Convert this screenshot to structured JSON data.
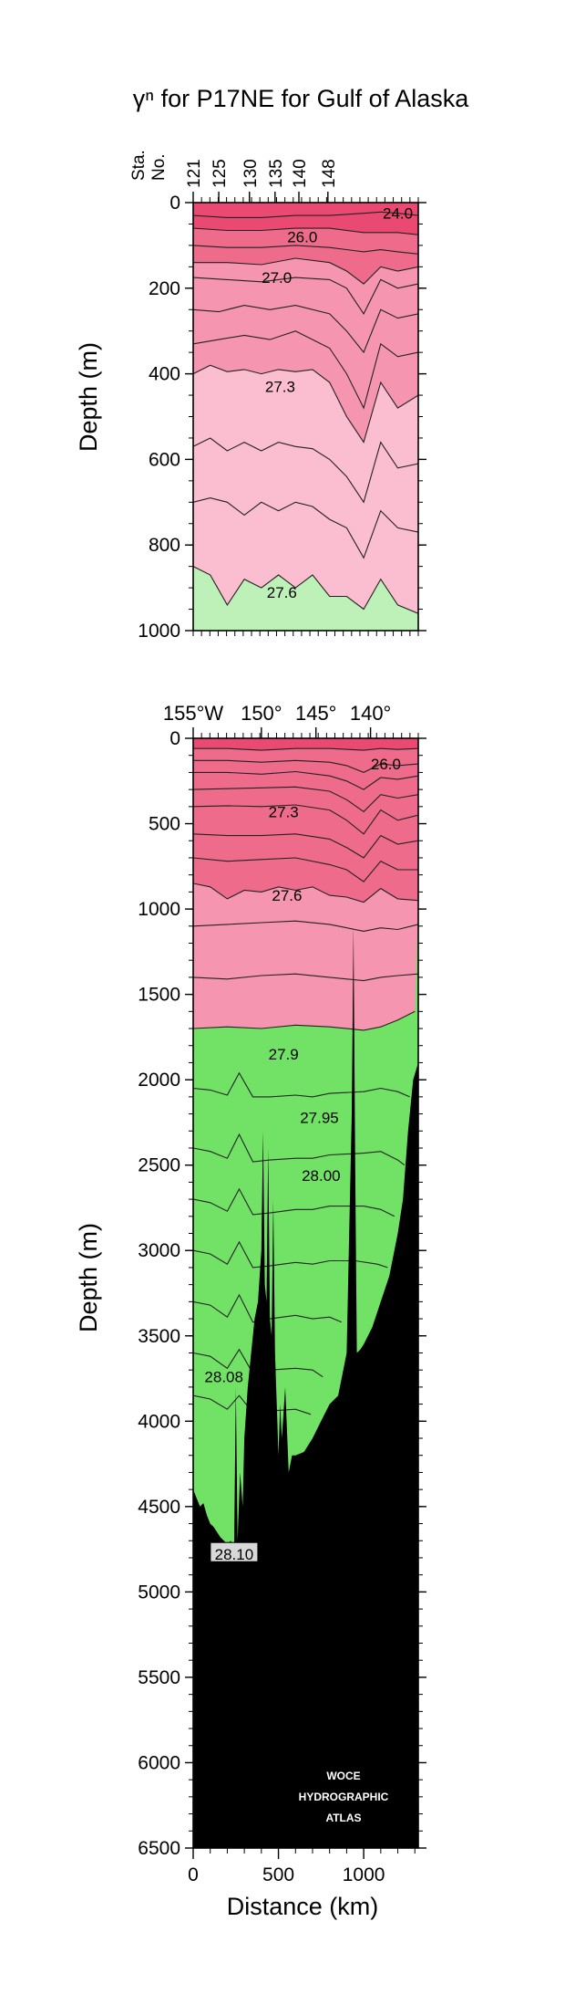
{
  "title": "γⁿ for P17NE for Gulf of Alaska",
  "chart_data": [
    {
      "type": "area",
      "panel": "upper",
      "title": "γⁿ for P17NE for Gulf of Alaska",
      "xlabel": "",
      "ylabel": "Depth (m)",
      "station_axis_label_1": "Sta.",
      "station_axis_label_2": "No.",
      "station_ticks": [
        "121",
        "125",
        "130",
        "135",
        "140",
        "148"
      ],
      "station_tick_positions_km": [
        0,
        150,
        330,
        480,
        620,
        790
      ],
      "xlim": [
        0,
        1320
      ],
      "ylim": [
        0,
        1000
      ],
      "yticks": [
        "0",
        "200",
        "400",
        "600",
        "800",
        "1000"
      ],
      "ytick_values": [
        0,
        200,
        400,
        600,
        800,
        1000
      ],
      "annotations": [
        {
          "text": "24.0",
          "x_km": 1200,
          "depth": 25
        },
        {
          "text": "26.0",
          "x_km": 640,
          "depth": 80
        },
        {
          "text": "27.0",
          "x_km": 490,
          "depth": 175
        },
        {
          "text": "27.3",
          "x_km": 510,
          "depth": 430
        },
        {
          "text": "27.6",
          "x_km": 520,
          "depth": 910
        }
      ],
      "bands": [
        {
          "label": "<26.0",
          "color": "#ea4a72"
        },
        {
          "label": "26.0-27.0",
          "color": "#ef6b8c"
        },
        {
          "label": "27.0-27.3",
          "color": "#f595b0"
        },
        {
          "label": "27.3-27.6",
          "color": "#fbbed0"
        },
        {
          "label": ">27.6",
          "color": "#bef1b8"
        }
      ],
      "isopycnals": [
        {
          "x": [
            0,
            200,
            400,
            600,
            800,
            1000,
            1100,
            1200,
            1320
          ],
          "depth": [
            30,
            35,
            35,
            30,
            30,
            25,
            22,
            25,
            30
          ]
        },
        {
          "x": [
            0,
            200,
            400,
            600,
            800,
            1000,
            1100,
            1200,
            1320
          ],
          "depth": [
            60,
            65,
            65,
            60,
            60,
            70,
            70,
            70,
            75
          ]
        },
        {
          "x": [
            0,
            200,
            400,
            600,
            800,
            1000,
            1100,
            1200,
            1320
          ],
          "depth": [
            100,
            105,
            105,
            100,
            105,
            115,
            110,
            115,
            120
          ]
        },
        {
          "x": [
            0,
            200,
            400,
            600,
            800,
            900,
            1000,
            1100,
            1200,
            1320
          ],
          "depth": [
            140,
            140,
            145,
            130,
            140,
            160,
            190,
            150,
            160,
            150
          ]
        },
        {
          "x": [
            0,
            200,
            400,
            600,
            800,
            900,
            1000,
            1100,
            1200,
            1320
          ],
          "depth": [
            175,
            180,
            185,
            175,
            180,
            200,
            260,
            180,
            200,
            190
          ]
        },
        {
          "x": [
            0,
            150,
            300,
            450,
            600,
            800,
            900,
            1000,
            1100,
            1200,
            1320
          ],
          "depth": [
            250,
            255,
            240,
            250,
            240,
            260,
            300,
            350,
            250,
            270,
            260
          ]
        },
        {
          "x": [
            0,
            150,
            300,
            450,
            600,
            800,
            900,
            1000,
            1100,
            1200,
            1320
          ],
          "depth": [
            330,
            320,
            310,
            320,
            300,
            340,
            400,
            480,
            330,
            360,
            350
          ]
        },
        {
          "x": [
            0,
            100,
            200,
            300,
            400,
            500,
            600,
            700,
            800,
            900,
            1000,
            1100,
            1200,
            1320
          ],
          "depth": [
            400,
            380,
            395,
            390,
            400,
            390,
            395,
            390,
            420,
            500,
            560,
            420,
            480,
            450
          ]
        },
        {
          "x": [
            0,
            100,
            200,
            300,
            400,
            500,
            600,
            700,
            800,
            900,
            1000,
            1100,
            1200,
            1320
          ],
          "depth": [
            570,
            550,
            580,
            560,
            580,
            560,
            570,
            575,
            600,
            640,
            700,
            560,
            620,
            610
          ]
        },
        {
          "x": [
            0,
            100,
            200,
            300,
            400,
            500,
            600,
            700,
            800,
            900,
            1000,
            1100,
            1200,
            1320
          ],
          "depth": [
            700,
            690,
            700,
            730,
            700,
            720,
            700,
            710,
            740,
            760,
            830,
            720,
            760,
            770
          ]
        },
        {
          "x": [
            0,
            100,
            200,
            300,
            400,
            500,
            600,
            700,
            800,
            900,
            1000,
            1100,
            1200,
            1320
          ],
          "depth": [
            850,
            870,
            940,
            880,
            900,
            870,
            900,
            870,
            920,
            920,
            950,
            880,
            940,
            960
          ]
        }
      ]
    },
    {
      "type": "area",
      "panel": "lower",
      "xlabel": "Distance (km)",
      "ylabel": "Depth (m)",
      "longitude_ticks": [
        "155°W",
        "150°",
        "145°",
        "140°"
      ],
      "longitude_tick_positions_km": [
        0,
        400,
        720,
        1040
      ],
      "xlim": [
        0,
        1320
      ],
      "ylim": [
        0,
        6500
      ],
      "xticks": [
        "0",
        "500",
        "1000"
      ],
      "xtick_values": [
        0,
        500,
        1000
      ],
      "yticks": [
        "0",
        "500",
        "1000",
        "1500",
        "2000",
        "2500",
        "3000",
        "3500",
        "4000",
        "4500",
        "5000",
        "5500",
        "6000",
        "6500"
      ],
      "ytick_values": [
        0,
        500,
        1000,
        1500,
        2000,
        2500,
        3000,
        3500,
        4000,
        4500,
        5000,
        5500,
        6000,
        6500
      ],
      "annotations": [
        {
          "text": "26.0",
          "x_km": 1130,
          "depth": 150
        },
        {
          "text": "27.3",
          "x_km": 530,
          "depth": 430
        },
        {
          "text": "27.6",
          "x_km": 550,
          "depth": 920
        },
        {
          "text": "27.9",
          "x_km": 530,
          "depth": 1850
        },
        {
          "text": "27.95",
          "x_km": 740,
          "depth": 2220
        },
        {
          "text": "28.00",
          "x_km": 750,
          "depth": 2560
        },
        {
          "text": "28.08",
          "x_km": 180,
          "depth": 3740
        },
        {
          "text": "28.10",
          "x_km": 240,
          "depth": 4780,
          "boxed": true
        }
      ],
      "bands": [
        {
          "label": "<26.0",
          "color": "#ea4a72"
        },
        {
          "label": "26.0-27.0",
          "color": "#ef6b8c"
        },
        {
          "label": "27.0-27.3",
          "color": "#f595b0"
        },
        {
          "label": "27.3-27.6",
          "color": "#fbbed0"
        },
        {
          "label": "27.6-27.9",
          "color": "#bef1b8"
        },
        {
          "label": ">27.9",
          "color": "#72e266"
        }
      ],
      "isopycnals": [
        {
          "x": [
            0,
            200,
            400,
            600,
            800,
            1000,
            1100,
            1200,
            1320
          ],
          "depth": [
            60,
            60,
            70,
            60,
            60,
            70,
            60,
            65,
            60
          ]
        },
        {
          "x": [
            0,
            200,
            400,
            600,
            800,
            900,
            1000,
            1100,
            1200,
            1320
          ],
          "depth": [
            130,
            130,
            140,
            130,
            140,
            160,
            200,
            150,
            160,
            150
          ]
        },
        {
          "x": [
            0,
            200,
            400,
            600,
            800,
            900,
            1000,
            1100,
            1200,
            1320
          ],
          "depth": [
            200,
            200,
            210,
            195,
            220,
            250,
            300,
            230,
            240,
            220
          ]
        },
        {
          "x": [
            0,
            200,
            400,
            600,
            800,
            900,
            1000,
            1100,
            1200,
            1320
          ],
          "depth": [
            300,
            295,
            290,
            285,
            310,
            360,
            430,
            330,
            350,
            330
          ]
        },
        {
          "x": [
            0,
            200,
            400,
            600,
            800,
            900,
            1000,
            1100,
            1200,
            1320
          ],
          "depth": [
            400,
            395,
            400,
            390,
            420,
            480,
            560,
            420,
            480,
            450
          ]
        },
        {
          "x": [
            0,
            200,
            400,
            600,
            800,
            900,
            1000,
            1100,
            1200,
            1320
          ],
          "depth": [
            560,
            570,
            570,
            560,
            590,
            640,
            700,
            570,
            620,
            600
          ]
        },
        {
          "x": [
            0,
            200,
            400,
            600,
            800,
            900,
            1000,
            1100,
            1200,
            1320
          ],
          "depth": [
            700,
            720,
            710,
            700,
            740,
            770,
            840,
            720,
            770,
            770
          ]
        },
        {
          "x": [
            0,
            100,
            200,
            300,
            400,
            500,
            600,
            700,
            800,
            900,
            1000,
            1100,
            1200,
            1320
          ],
          "depth": [
            850,
            870,
            940,
            890,
            900,
            870,
            890,
            870,
            920,
            930,
            960,
            880,
            940,
            950
          ]
        },
        {
          "x": [
            0,
            200,
            400,
            600,
            800,
            1000,
            1100,
            1200,
            1320
          ],
          "depth": [
            1100,
            1090,
            1080,
            1070,
            1090,
            1130,
            1110,
            1120,
            1090
          ]
        },
        {
          "x": [
            0,
            200,
            400,
            600,
            800,
            1000,
            1100,
            1200,
            1320
          ],
          "depth": [
            1400,
            1410,
            1390,
            1380,
            1400,
            1420,
            1400,
            1390,
            1380
          ]
        },
        {
          "x": [
            0,
            200,
            400,
            600,
            800,
            1000,
            1100,
            1200,
            1300
          ],
          "depth": [
            1700,
            1690,
            1700,
            1680,
            1690,
            1710,
            1690,
            1650,
            1600
          ]
        },
        {
          "x": [
            0,
            100,
            200,
            270,
            350,
            450,
            600,
            700,
            800,
            1000,
            1100,
            1200,
            1270
          ],
          "depth": [
            2050,
            2060,
            2090,
            1960,
            2100,
            2100,
            2090,
            2100,
            2080,
            2070,
            2050,
            2070,
            2100
          ]
        },
        {
          "x": [
            0,
            100,
            200,
            270,
            350,
            450,
            600,
            700,
            800,
            1000,
            1100,
            1200,
            1240
          ],
          "depth": [
            2400,
            2420,
            2460,
            2320,
            2480,
            2470,
            2460,
            2460,
            2440,
            2430,
            2420,
            2470,
            2500
          ]
        },
        {
          "x": [
            0,
            100,
            200,
            270,
            350,
            450,
            600,
            700,
            800,
            1000,
            1100,
            1180
          ],
          "depth": [
            2700,
            2720,
            2770,
            2640,
            2790,
            2780,
            2760,
            2760,
            2740,
            2740,
            2760,
            2800
          ]
        },
        {
          "x": [
            0,
            100,
            200,
            270,
            350,
            450,
            600,
            700,
            800,
            950,
            1080,
            1140
          ],
          "depth": [
            3000,
            3020,
            3080,
            2950,
            3100,
            3090,
            3070,
            3080,
            3060,
            3060,
            3080,
            3100
          ]
        },
        {
          "x": [
            0,
            100,
            200,
            270,
            350,
            450,
            600,
            700,
            800,
            870
          ],
          "depth": [
            3300,
            3320,
            3390,
            3260,
            3420,
            3400,
            3380,
            3400,
            3390,
            3420
          ]
        },
        {
          "x": [
            0,
            100,
            200,
            270,
            350,
            450,
            600,
            700,
            760
          ],
          "depth": [
            3600,
            3620,
            3690,
            3580,
            3720,
            3700,
            3690,
            3700,
            3740
          ]
        },
        {
          "x": [
            0,
            100,
            200,
            270,
            350,
            450,
            600,
            690
          ],
          "depth": [
            3850,
            3870,
            3930,
            3850,
            3950,
            3940,
            3930,
            3960
          ]
        }
      ],
      "seafloor": {
        "x": [
          0,
          20,
          40,
          60,
          80,
          100,
          120,
          140,
          160,
          180,
          200,
          220,
          240,
          250,
          260,
          275,
          290,
          300,
          320,
          340,
          360,
          380,
          400,
          410,
          420,
          430,
          440,
          450,
          460,
          470,
          480,
          490,
          500,
          510,
          520,
          540,
          560,
          580,
          600,
          650,
          700,
          750,
          800,
          850,
          880,
          900,
          930,
          940,
          950,
          960,
          980,
          1000,
          1050,
          1100,
          1150,
          1200,
          1230,
          1260,
          1290,
          1320
        ],
        "depth": [
          4400,
          4450,
          4500,
          4480,
          4550,
          4600,
          4620,
          4650,
          4680,
          4700,
          4720,
          4700,
          4760,
          3800,
          4700,
          4300,
          4500,
          4100,
          3800,
          3600,
          3400,
          3300,
          3000,
          2300,
          3200,
          3300,
          2400,
          3400,
          3500,
          2700,
          3600,
          3900,
          4200,
          3900,
          4100,
          3800,
          4300,
          4200,
          4200,
          4180,
          4100,
          4000,
          3900,
          3850,
          3700,
          3600,
          2200,
          1100,
          2500,
          3600,
          3580,
          3550,
          3450,
          3300,
          3150,
          2900,
          2700,
          2300,
          2000,
          1900
        ]
      },
      "logo_lines": [
        "WOCE",
        "HYDROGRAPHIC",
        "ATLAS"
      ]
    }
  ]
}
